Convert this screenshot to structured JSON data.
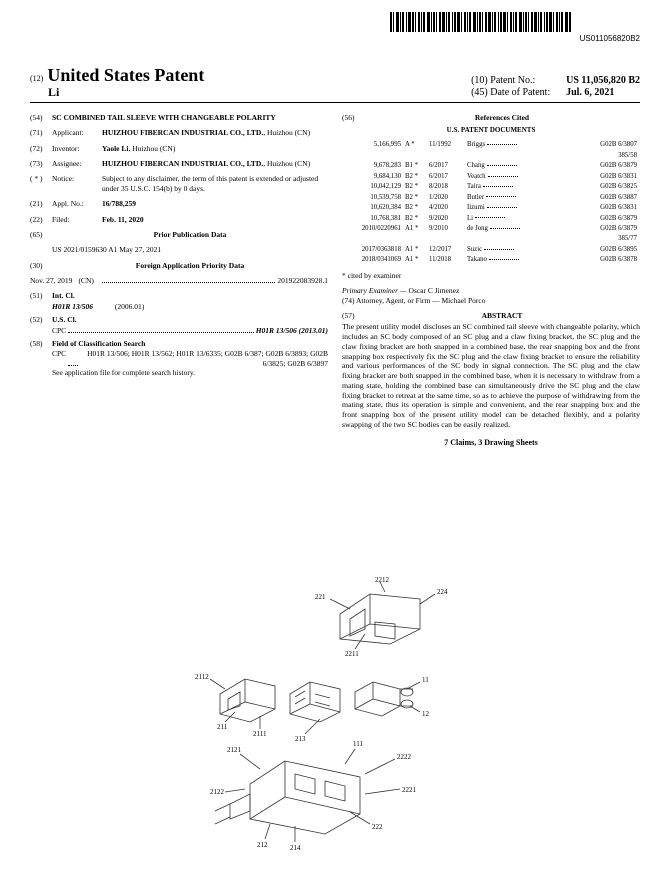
{
  "barcode_text": "US011056820B2",
  "header": {
    "left_num": "(12)",
    "title": "United States Patent",
    "sub": "Li",
    "patent_no_lbl": "(10) Patent No.:",
    "patent_no": "US 11,056,820 B2",
    "date_lbl": "(45) Date of Patent:",
    "date": "Jul. 6, 2021"
  },
  "fields": {
    "f54_num": "(54)",
    "f54_title": "SC COMBINED TAIL SLEEVE WITH CHANGEABLE POLARITY",
    "f71_num": "(71)",
    "f71_lbl": "Applicant:",
    "f71_val": "HUIZHOU FIBERCAN INDUSTRIAL CO., LTD.",
    "f71_loc": ", Huizhou (CN)",
    "f72_num": "(72)",
    "f72_lbl": "Inventor:",
    "f72_val": "Yaole Li",
    "f72_loc": ", Huizhou (CN)",
    "f73_num": "(73)",
    "f73_lbl": "Assignee:",
    "f73_val": "HUIZHOU FIBERCAN INDUSTRIAL CO., LTD.",
    "f73_loc": ", Huizhou (CN)",
    "fnotice_num": "( * )",
    "fnotice_lbl": "Notice:",
    "fnotice_val": "Subject to any disclaimer, the term of this patent is extended or adjusted under 35 U.S.C. 154(b) by 0 days.",
    "f21_num": "(21)",
    "f21_lbl": "Appl. No.:",
    "f21_val": "16/788,259",
    "f22_num": "(22)",
    "f22_lbl": "Filed:",
    "f22_val": "Feb. 11, 2020",
    "f65_num": "(65)",
    "f65_title": "Prior Publication Data",
    "f65_val": "US 2021/0159630 A1    May 27, 2021",
    "f30_num": "(30)",
    "f30_title": "Foreign Application Priority Data",
    "f30_date": "Nov. 27, 2019",
    "f30_cc": "(CN)",
    "f30_val": "201922083928.1",
    "f51_num": "(51)",
    "f51_lbl": "Int. Cl.",
    "f51_code": "H01R 13/506",
    "f51_year": "(2006.01)",
    "f52_num": "(52)",
    "f52_lbl": "U.S. Cl.",
    "f52_pre": "CPC",
    "f52_val": "H01R 13/506 (2013.01)",
    "f58_num": "(58)",
    "f58_lbl": "Field of Classification Search",
    "f58_pre": "CPC",
    "f58_val": "H01R 13/506; H01R 13/562; H01R 13/6335; G02B 6/387; G02B 6/3893; G02B 6/3825; G02B 6/3897",
    "f58_note": "See application file for complete search history."
  },
  "refs": {
    "f56_num": "(56)",
    "f56_title": "References Cited",
    "sub": "U.S. PATENT DOCUMENTS",
    "rows": [
      {
        "n": "5,166,995",
        "t": "A *",
        "d": "11/1992",
        "a": "Briggs",
        "c": "G02B 6/3807"
      },
      {
        "n": "",
        "t": "",
        "d": "",
        "a": "",
        "c": "385/58"
      },
      {
        "n": "9,678,283",
        "t": "B1 *",
        "d": "6/2017",
        "a": "Chang",
        "c": "G02B 6/3879"
      },
      {
        "n": "9,684,130",
        "t": "B2 *",
        "d": "6/2017",
        "a": "Veatch",
        "c": "G02B 6/3831"
      },
      {
        "n": "10,042,129",
        "t": "B2 *",
        "d": "8/2018",
        "a": "Taira",
        "c": "G02B 6/3825"
      },
      {
        "n": "10,539,758",
        "t": "B2 *",
        "d": "1/2020",
        "a": "Butler",
        "c": "G02B 6/3887"
      },
      {
        "n": "10,620,384",
        "t": "B2 *",
        "d": "4/2020",
        "a": "Iizumi",
        "c": "G02B 6/3831"
      },
      {
        "n": "10,768,381",
        "t": "B2 *",
        "d": "9/2020",
        "a": "Li",
        "c": "G02B 6/3879"
      },
      {
        "n": "2010/0220961",
        "t": "A1 *",
        "d": "9/2010",
        "a": "de Jong",
        "c": "G02B 6/3879"
      },
      {
        "n": "",
        "t": "",
        "d": "",
        "a": "",
        "c": "385/77"
      },
      {
        "n": "2017/0363818",
        "t": "A1 *",
        "d": "12/2017",
        "a": "Suzic",
        "c": "G02B 6/3895"
      },
      {
        "n": "2018/0341069",
        "t": "A1 *",
        "d": "11/2018",
        "a": "Takano",
        "c": "G02B 6/3878"
      }
    ],
    "cited": "* cited by examiner",
    "examiner_lbl": "Primary Examiner — ",
    "examiner": "Oscar C Jimenez",
    "agent_lbl": "(74) Attorney, Agent, or Firm — ",
    "agent": "Michael Porco"
  },
  "abstract": {
    "num": "(57)",
    "title": "ABSTRACT",
    "text": "The present utility model discloses an SC combined tail sleeve with changeable polarity, which includes an SC body composed of an SC plug and a claw fixing bracket, the SC plug and the claw fixing bracket are both snapped in a combined base, the rear snapping box and the front snapping box respectively fix the SC plug and the claw fixing bracket to ensure the reliability and various performances of the SC body in signal connection. The SC plug and the claw fixing bracket are both snapped in the combined base, when it is necessary to withdraw from a mating state, holding the combined base can simultaneously drive the SC plug and the claw fixing bracket to retreat at the same time, so as to achieve the purpose of withdrawing from the mating state, thus its operation is simple and convenient, and the rear snapping box and the front snapping box of the present utility model can be detached flexibly, and a polarity swapping of the two SC bodies can be easily realized."
  },
  "claims": "7 Claims, 3 Drawing Sheets",
  "figure_labels": [
    "221",
    "2212",
    "224",
    "2211",
    "2112",
    "211",
    "2111",
    "11",
    "213",
    "12",
    "2121",
    "111",
    "2222",
    "2122",
    "2221",
    "222",
    "214",
    "212"
  ],
  "colors": {
    "page_bg": "#ffffff",
    "body_bg": "#f0f0f0",
    "text": "#000000",
    "stroke": "#333333"
  }
}
